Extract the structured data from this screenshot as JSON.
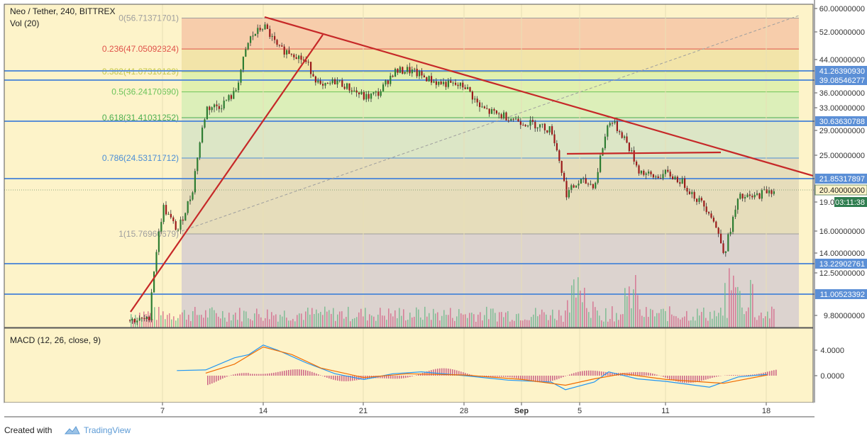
{
  "chart_data": {
    "type": "candlestick",
    "title": "Neo / Tether, 240, BITTREX",
    "volume_label": "Vol (20)",
    "macd_label": "MACD (12, 26, close, 9)",
    "x_ticks": [
      "7",
      "14",
      "21",
      "28",
      "Sep",
      "5",
      "11",
      "18"
    ],
    "price_ticks": [
      "60.00000000",
      "52.00000000",
      "44.00000000",
      "36.00000000",
      "33.00000000",
      "29.00000000",
      "25.00000000",
      "19.00000000",
      "16.00000000",
      "14.00000000",
      "12.50000000",
      "9.80000000"
    ],
    "macd_ticks": [
      "4.0000",
      "0.0000"
    ],
    "fib_levels": [
      {
        "ratio": 0,
        "value": 56.71371701,
        "label": "0(56.71371701)",
        "color": "#9e9e9e",
        "band": "#f6c6a6"
      },
      {
        "ratio": 0.236,
        "value": 47.05092824,
        "label": "0.236(47.05092824)",
        "color": "#e0524a",
        "band": "#f0e0a3"
      },
      {
        "ratio": 0.382,
        "value": 41.07310129,
        "label": "0.382(41.07310129)",
        "color": "#c3c74a",
        "band": "#dcefaa"
      },
      {
        "ratio": 0.5,
        "value": 36.2417069,
        "label": "0.5(36.24170690)",
        "color": "#6bc35a",
        "band": "#d6edb6"
      },
      {
        "ratio": 0.618,
        "value": 31.41031252,
        "label": "0.618(31.41031252)",
        "color": "#4caf50",
        "band": "#d6e3c6"
      },
      {
        "ratio": 0.786,
        "value": 24.53171712,
        "label": "0.786(24.53171712)",
        "color": "#4b8ed6",
        "band": "#e2d8b9"
      },
      {
        "ratio": 1,
        "value": 15.76960679,
        "label": "1(15.76960679)",
        "color": "#9e9e9e",
        "band": "#d6ccd0"
      }
    ],
    "horizontal_lines": [
      {
        "value": 41.2639093,
        "label": "41.26390930"
      },
      {
        "value": 39.08546277,
        "label": "39.08546277"
      },
      {
        "value": 30.63630788,
        "label": "30.63630788"
      },
      {
        "value": 21.85317897,
        "label": "21.85317897"
      },
      {
        "value": 13.22902761,
        "label": "13.22902761"
      },
      {
        "value": 11.00523392,
        "label": "11.00523392"
      }
    ],
    "current_price": "20.40000000",
    "countdown": "03:11:38",
    "price_scale_ticks": [
      60,
      52,
      44,
      36,
      33,
      29,
      25,
      19,
      16,
      14,
      12.5,
      9.8
    ],
    "price_path": [
      [
        "Aug 6",
        9.5
      ],
      [
        "Aug 7",
        18.5
      ],
      [
        "Aug 8",
        16.0
      ],
      [
        "Aug 9",
        20.0
      ],
      [
        "Aug 10",
        33.0
      ],
      [
        "Aug 11",
        33.5
      ],
      [
        "Aug 12",
        36.0
      ],
      [
        "Aug 13",
        50.0
      ],
      [
        "Aug 14",
        54.0
      ],
      [
        "Aug 15",
        47.0
      ],
      [
        "Aug 16",
        46.0
      ],
      [
        "Aug 17",
        43.0
      ],
      [
        "Aug 18",
        37.0
      ],
      [
        "Aug 19",
        39.0
      ],
      [
        "Aug 20",
        37.0
      ],
      [
        "Aug 21",
        35.0
      ],
      [
        "Aug 22",
        36.0
      ],
      [
        "Aug 23",
        41.0
      ],
      [
        "Aug 24",
        41.5
      ],
      [
        "Aug 25",
        40.0
      ],
      [
        "Aug 26",
        38.5
      ],
      [
        "Aug 27",
        38.0
      ],
      [
        "Aug 28",
        37.5
      ],
      [
        "Aug 29",
        33.0
      ],
      [
        "Aug 30",
        32.0
      ],
      [
        "Aug 31",
        31.5
      ],
      [
        "Sep 1",
        30.5
      ],
      [
        "Sep 2",
        30.0
      ],
      [
        "Sep 3",
        29.0
      ],
      [
        "Sep 4",
        20.0
      ],
      [
        "Sep 5",
        21.5
      ],
      [
        "Sep 6",
        21.0
      ],
      [
        "Sep 7",
        31.0
      ],
      [
        "Sep 8",
        28.0
      ],
      [
        "Sep 9",
        23.0
      ],
      [
        "Sep 10",
        22.0
      ],
      [
        "Sep 11",
        22.5
      ],
      [
        "Sep 12",
        21.5
      ],
      [
        "Sep 13",
        19.5
      ],
      [
        "Sep 14",
        18.0
      ],
      [
        "Sep 15",
        14.0
      ],
      [
        "Sep 16",
        19.5
      ],
      [
        "Sep 17",
        19.5
      ],
      [
        "Sep 18",
        20.4
      ]
    ],
    "macd_path": [
      [
        "Aug 8",
        0.8
      ],
      [
        "Aug 10",
        0.9
      ],
      [
        "Aug 12",
        2.8
      ],
      [
        "Aug 13",
        3.3
      ],
      [
        "Aug 14",
        4.8
      ],
      [
        "Aug 15",
        4.0
      ],
      [
        "Aug 17",
        2.0
      ],
      [
        "Aug 19",
        0.3
      ],
      [
        "Aug 21",
        -0.6
      ],
      [
        "Aug 23",
        0.3
      ],
      [
        "Aug 25",
        0.6
      ],
      [
        "Aug 28",
        0.0
      ],
      [
        "Aug 31",
        -0.7
      ],
      [
        "Sep 3",
        -1.0
      ],
      [
        "Sep 4",
        -2.2
      ],
      [
        "Sep 6",
        -1.0
      ],
      [
        "Sep 7",
        0.6
      ],
      [
        "Sep 9",
        -0.5
      ],
      [
        "Sep 11",
        -0.9
      ],
      [
        "Sep 14",
        -1.8
      ],
      [
        "Sep 16",
        -0.2
      ],
      [
        "Sep 18",
        0.2
      ]
    ],
    "signal_path": [
      [
        "Aug 10",
        0.4
      ],
      [
        "Aug 12",
        1.8
      ],
      [
        "Aug 14",
        4.5
      ],
      [
        "Aug 16",
        3.3
      ],
      [
        "Aug 18",
        1.2
      ],
      [
        "Aug 21",
        -0.3
      ],
      [
        "Aug 24",
        0.3
      ],
      [
        "Aug 28",
        0.1
      ],
      [
        "Sep 1",
        -0.6
      ],
      [
        "Sep 4",
        -1.5
      ],
      [
        "Sep 6",
        -0.5
      ],
      [
        "Sep 8",
        0.3
      ],
      [
        "Sep 11",
        -0.6
      ],
      [
        "Sep 15",
        -1.2
      ],
      [
        "Sep 18",
        0.1
      ]
    ]
  },
  "footer": {
    "created_with": "Created with",
    "brand": "TradingView"
  }
}
